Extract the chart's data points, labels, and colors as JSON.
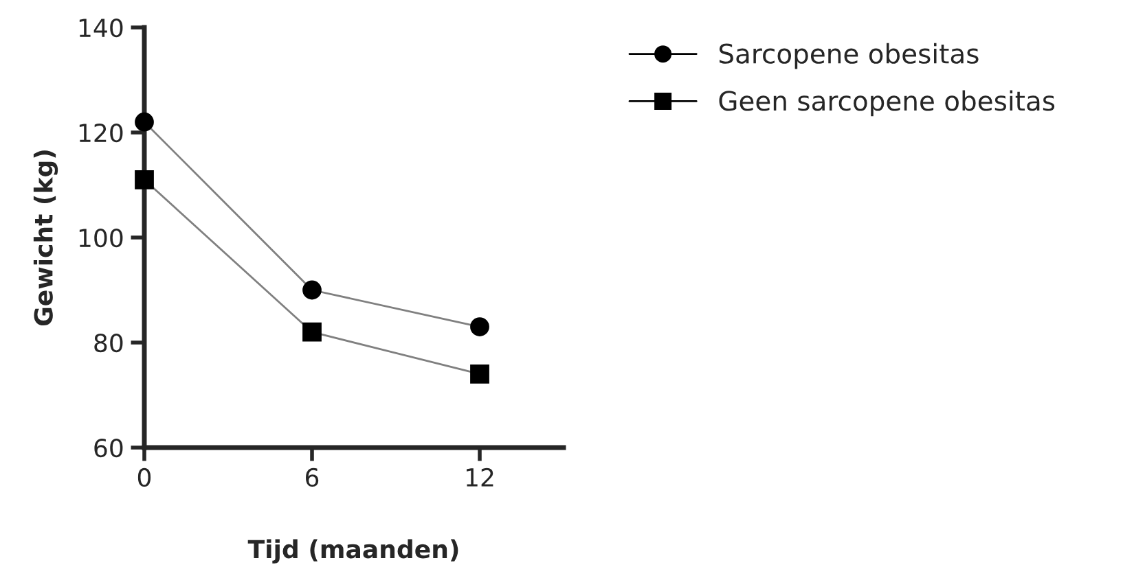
{
  "chart_data": {
    "type": "line",
    "xlabel": "Tijd (maanden)",
    "ylabel": "Gewicht (kg)",
    "x": [
      0,
      6,
      12
    ],
    "xlim": [
      0,
      15
    ],
    "xticks": [
      0,
      6,
      12
    ],
    "ylim": [
      60,
      140
    ],
    "yticks": [
      60,
      80,
      100,
      120,
      140
    ],
    "grid": false,
    "legend": "top right",
    "series": [
      {
        "name": "Sarcopene obesitas",
        "color": "#000000",
        "marker": "circle",
        "values": [
          122,
          90,
          83
        ]
      },
      {
        "name": "Geen sarcopene obesitas",
        "color": "#000000",
        "marker": "square",
        "values": [
          111,
          82,
          74
        ]
      }
    ]
  }
}
